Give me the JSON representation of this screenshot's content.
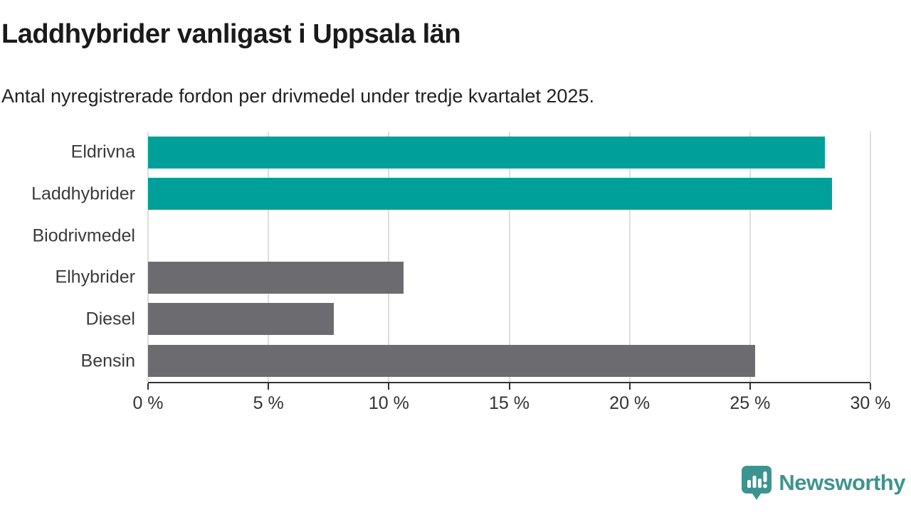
{
  "header": {
    "title": "Laddhybrider vanligast i Uppsala län",
    "subtitle": "Antal nyregistrerade fordon per drivmedel under tredje kvartalet 2025."
  },
  "chart_data": {
    "type": "bar",
    "orientation": "horizontal",
    "title": "Laddhybrider vanligast i Uppsala län",
    "subtitle": "Antal nyregistrerade fordon per drivmedel under tredje kvartalet 2025.",
    "categories": [
      "Eldrivna",
      "Laddhybrider",
      "Biodrivmedel",
      "Elhybrider",
      "Diesel",
      "Bensin"
    ],
    "values": [
      28.1,
      28.4,
      0,
      10.6,
      7.7,
      25.2
    ],
    "unit": "%",
    "bar_colors": [
      "#00A09A",
      "#00A09A",
      "#6C6B70",
      "#6C6B70",
      "#6C6B70",
      "#6C6B70"
    ],
    "xlim": [
      0,
      30
    ],
    "x_ticks": [
      0,
      5,
      10,
      15,
      20,
      25,
      30
    ],
    "x_tick_labels": [
      "0 %",
      "5 %",
      "10 %",
      "15 %",
      "20 %",
      "25 %",
      "30 %"
    ],
    "grid": "vertical-only",
    "legend": "none",
    "xlabel": "",
    "ylabel": ""
  },
  "branding": {
    "text": "Newsworthy",
    "icon": "newsworthy-logo-icon",
    "color": "#3D948F"
  },
  "colors": {
    "highlight_teal": "#00A09A",
    "neutral_gray": "#6C6B70",
    "gridline": "#DEDEDE",
    "axis_line": "#333333",
    "title_text": "#1A1A1A",
    "body_text": "#333333"
  }
}
